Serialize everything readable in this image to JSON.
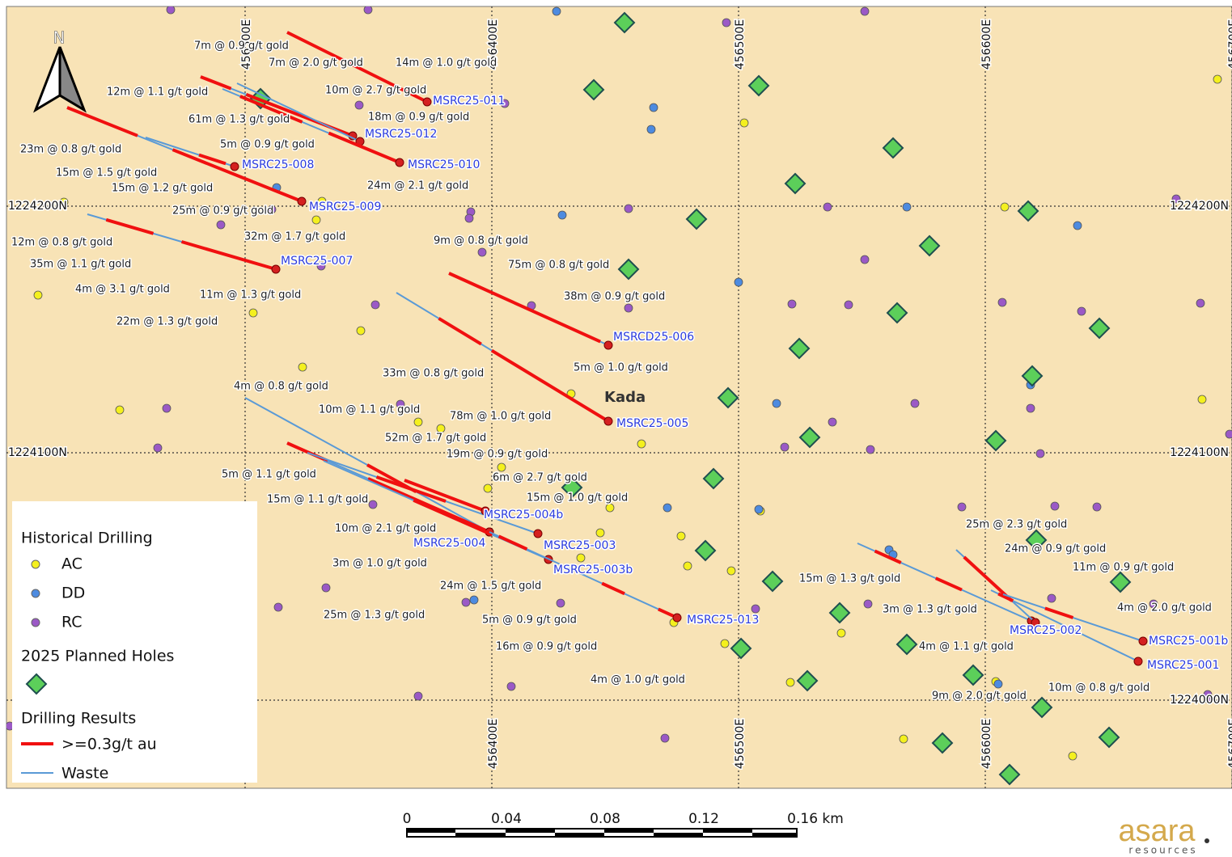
{
  "map": {
    "north_label": "N",
    "eastings": [
      "456300E",
      "456400E",
      "456500E",
      "456600E",
      "456700E"
    ],
    "northings": [
      "1224200N",
      "1224100N",
      "1224000N"
    ],
    "area_label": "Kada",
    "holes": [
      "MSRC25-011",
      "MSRC25-012",
      "MSRC25-010",
      "MSRC25-008",
      "MSRC25-009",
      "MSRC25-007",
      "MSRCD25-006",
      "MSRC25-005",
      "MSRC25-004b",
      "MSRC25-004",
      "MSRC25-003",
      "MSRC25-003b",
      "MSRC25-013",
      "MSRC25-002",
      "MSRC25-001b",
      "MSRC25-001"
    ],
    "intercepts": [
      "7m @ 0.9 g/t gold",
      "7m @ 2.0 g/t gold",
      "14m @ 1.0 g/t gold",
      "12m @ 1.1 g/t gold",
      "10m @ 2.7 g/t gold",
      "61m @ 1.3 g/t gold",
      "18m @ 0.9 g/t gold",
      "5m @ 0.9 g/t gold",
      "23m @ 0.8 g/t gold",
      "15m @ 1.5 g/t gold",
      "15m @ 1.2 g/t gold",
      "24m @ 2.1 g/t gold",
      "25m @ 0.9 g/t gold",
      "32m @ 1.7 g/t gold",
      "12m @ 0.8 g/t gold",
      "9m @ 0.8 g/t gold",
      "35m @ 1.1 g/t gold",
      "75m @ 0.8 g/t gold",
      "4m @ 3.1 g/t gold",
      "11m @ 1.3 g/t gold",
      "38m @ 0.9 g/t gold",
      "22m @ 1.3 g/t gold",
      "5m @ 1.0 g/t gold",
      "33m @ 0.8 g/t gold",
      "4m @ 0.8 g/t gold",
      "10m @ 1.1 g/t gold",
      "78m @ 1.0 g/t gold",
      "52m @ 1.7 g/t gold",
      "19m @ 0.9 g/t gold",
      "5m @ 1.1 g/t gold",
      "6m @ 2.7 g/t gold",
      "15m @ 1.1 g/t gold",
      "15m @ 1.0 g/t gold",
      "10m @ 2.1 g/t gold",
      "3m @ 1.0 g/t gold",
      "24m @ 1.5 g/t gold",
      "25m @ 1.3 g/t gold",
      "5m @ 0.9 g/t gold",
      "16m @ 0.9 g/t gold",
      "4m @ 1.0 g/t gold",
      "25m @ 2.3 g/t gold",
      "24m @ 0.9 g/t gold",
      "11m @ 0.9 g/t gold",
      "15m @ 1.3 g/t gold",
      "4m @ 2.0 g/t gold",
      "3m @ 1.3 g/t gold",
      "4m @ 1.1 g/t gold",
      "10m @ 0.8 g/t gold",
      "9m @ 2.0 g/t gold"
    ]
  },
  "legend": {
    "historical_title": "Historical Drilling",
    "ac": "AC",
    "dd": "DD",
    "rc": "RC",
    "planned_title": "2025 Planned Holes",
    "results_title": "Drilling Results",
    "ore": ">=0.3g/t au",
    "waste": "Waste"
  },
  "scale_bar": {
    "labels": [
      "0",
      "0.04",
      "0.08",
      "0.12",
      "0.16 km"
    ]
  },
  "logo": {
    "name": "asara",
    "tagline": "resources"
  }
}
